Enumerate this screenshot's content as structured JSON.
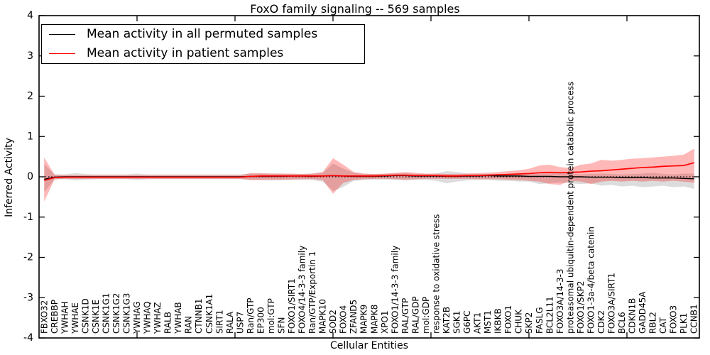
{
  "title": "FoxO family signaling -- 569 samples",
  "legend": {
    "items": [
      {
        "label": "Mean activity in all permuted samples",
        "color": "#000000"
      },
      {
        "label": "Mean activity in patient samples",
        "color": "#ff0000"
      }
    ]
  },
  "chart_data": {
    "type": "line",
    "title": "FoxO family signaling -- 569 samples",
    "xlabel": "Cellular Entities",
    "ylabel": "Inferred Activity",
    "ylim": [
      -4,
      4
    ],
    "yticks": [
      -4,
      -3,
      -2,
      -1,
      0,
      1,
      2,
      3,
      4
    ],
    "grid": false,
    "legend_position": "upper left",
    "reference_line": {
      "y": 0,
      "style": "dotted",
      "color": "#000000"
    },
    "categories": [
      "FBXO32",
      "CREBBP",
      "YWHAH",
      "YWHAE",
      "CSNK1D",
      "CSNK1E",
      "CSNK1G1",
      "CSNK1G2",
      "CSNK1G3",
      "YWHAG",
      "YWHAQ",
      "YWHAZ",
      "RALB",
      "YWHAB",
      "RAN",
      "CTNNB1",
      "CSNK1A1",
      "SIRT1",
      "RALA",
      "USP7",
      "Ran/GTP",
      "EP300",
      "mol:GTP",
      "SFN",
      "FOXO1/SIRT1",
      "FOXO4/14-3-3 family",
      "Ran/GTP/Exportin 1",
      "MAPK10",
      "SOD2",
      "FOXO4",
      "ZFAND5",
      "MAPK9",
      "MAPK8",
      "XPO1",
      "FOXO1/14-3-3 family",
      "RAL/GTP",
      "RAL/GDP",
      "mol:GDP",
      "response to oxidative stress",
      "KAT2B",
      "SGK1",
      "G6PC",
      "AKT1",
      "MST1",
      "IKBKB",
      "FOXO1",
      "CHUK",
      "SKP2",
      "FASLG",
      "BCL2L11",
      "FOXO3A/14-3-3",
      "proteasomal ubiquitin-dependent protein catabolic process",
      "FOXO1/SKP2",
      "FOXO1-3a-4/beta catenin",
      "CDK2",
      "FOXO3A/SIRT1",
      "BCL6",
      "CDKN1B",
      "GADD45A",
      "RBL2",
      "CAT",
      "FOXO3",
      "PLK1",
      "CCNB1"
    ],
    "series": [
      {
        "name": "Mean activity in all permuted samples",
        "color": "#000000",
        "values": [
          -0.06,
          -0.01,
          0,
          0,
          0,
          0,
          0,
          0,
          0,
          0,
          0,
          0,
          0,
          0,
          0,
          0,
          0,
          0,
          0,
          0,
          0.01,
          0.01,
          0.01,
          0.01,
          0.02,
          0.02,
          0.01,
          0.02,
          0.03,
          0.02,
          0.01,
          0.01,
          0.01,
          0.02,
          0.03,
          0.03,
          0.02,
          0.02,
          0.02,
          0.01,
          0.01,
          0.02,
          0.02,
          0.03,
          0.02,
          0.02,
          0.02,
          0.01,
          0.01,
          0.01,
          0,
          0,
          0,
          -0.01,
          -0.01,
          -0.01,
          -0.02,
          -0.02,
          -0.02,
          -0.03,
          -0.03,
          -0.03,
          -0.04,
          -0.05
        ]
      },
      {
        "name": "Mean activity in patient samples",
        "color": "#ff0000",
        "values": [
          -0.09,
          -0.02,
          -0.01,
          -0.01,
          -0.01,
          -0.01,
          -0.01,
          -0.01,
          -0.01,
          -0.01,
          -0.01,
          -0.01,
          -0.01,
          -0.01,
          -0.01,
          -0.01,
          -0.01,
          -0.01,
          -0.01,
          -0.01,
          0.01,
          0.02,
          0.02,
          0.02,
          0.02,
          0.02,
          0.02,
          0.02,
          0.03,
          0.02,
          0.02,
          0.02,
          0.02,
          0.03,
          0.04,
          0.04,
          0.03,
          0.03,
          0.03,
          0.02,
          0.02,
          0.03,
          0.03,
          0.04,
          0.05,
          0.06,
          0.07,
          0.08,
          0.1,
          0.11,
          0.1,
          0.11,
          0.12,
          0.14,
          0.15,
          0.17,
          0.19,
          0.21,
          0.23,
          0.24,
          0.26,
          0.27,
          0.28,
          0.35
        ]
      }
    ],
    "bands": [
      {
        "name": "permuted-samples-range",
        "color": "#808080",
        "opacity": 0.28,
        "upper": [
          0.32,
          0.06,
          0.06,
          0.09,
          0.07,
          0.06,
          0.06,
          0.06,
          0.06,
          0.08,
          0.06,
          0.06,
          0.06,
          0.06,
          0.06,
          0.06,
          0.06,
          0.06,
          0.06,
          0.06,
          0.08,
          0.08,
          0.08,
          0.08,
          0.07,
          0.07,
          0.08,
          0.1,
          0.33,
          0.2,
          0.1,
          0.07,
          0.07,
          0.07,
          0.08,
          0.09,
          0.07,
          0.07,
          0.08,
          0.14,
          0.12,
          0.08,
          0.07,
          0.07,
          0.07,
          0.07,
          0.07,
          0.07,
          0.08,
          0.08,
          0.1,
          0.07,
          0.06,
          0.07,
          0.08,
          0.07,
          0.06,
          0.07,
          0.08,
          0.1,
          0.07,
          0.06,
          0.08,
          0.08
        ],
        "lower": [
          -0.38,
          -0.07,
          -0.06,
          -0.09,
          -0.07,
          -0.06,
          -0.06,
          -0.06,
          -0.06,
          -0.08,
          -0.06,
          -0.06,
          -0.06,
          -0.06,
          -0.06,
          -0.06,
          -0.06,
          -0.06,
          -0.06,
          -0.06,
          -0.08,
          -0.08,
          -0.08,
          -0.08,
          -0.07,
          -0.07,
          -0.08,
          -0.12,
          -0.35,
          -0.25,
          -0.1,
          -0.08,
          -0.07,
          -0.07,
          -0.08,
          -0.09,
          -0.08,
          -0.08,
          -0.1,
          -0.16,
          -0.12,
          -0.09,
          -0.08,
          -0.08,
          -0.1,
          -0.1,
          -0.12,
          -0.12,
          -0.18,
          -0.16,
          -0.14,
          -0.16,
          -0.18,
          -0.16,
          -0.22,
          -0.2,
          -0.24,
          -0.22,
          -0.26,
          -0.24,
          -0.22,
          -0.26,
          -0.24,
          -0.3
        ]
      },
      {
        "name": "patient-samples-range",
        "color": "#ff0000",
        "opacity": 0.28,
        "upper": [
          0.48,
          0.05,
          0.04,
          0.04,
          0.04,
          0.04,
          0.04,
          0.04,
          0.04,
          0.04,
          0.04,
          0.04,
          0.04,
          0.04,
          0.04,
          0.04,
          0.04,
          0.04,
          0.04,
          0.04,
          0.09,
          0.09,
          0.08,
          0.08,
          0.08,
          0.07,
          0.08,
          0.12,
          0.46,
          0.3,
          0.12,
          0.08,
          0.07,
          0.08,
          0.1,
          0.12,
          0.1,
          0.08,
          0.08,
          0.07,
          0.07,
          0.08,
          0.09,
          0.1,
          0.12,
          0.14,
          0.16,
          0.2,
          0.28,
          0.3,
          0.24,
          0.22,
          0.3,
          0.33,
          0.42,
          0.4,
          0.42,
          0.45,
          0.46,
          0.48,
          0.5,
          0.52,
          0.55,
          0.7
        ],
        "lower": [
          -0.62,
          -0.06,
          -0.05,
          -0.05,
          -0.05,
          -0.05,
          -0.05,
          -0.05,
          -0.05,
          -0.05,
          -0.05,
          -0.05,
          -0.05,
          -0.05,
          -0.05,
          -0.05,
          -0.05,
          -0.05,
          -0.05,
          -0.05,
          -0.08,
          -0.08,
          -0.08,
          -0.08,
          -0.07,
          -0.06,
          -0.06,
          -0.08,
          -0.42,
          -0.15,
          -0.08,
          -0.06,
          -0.05,
          -0.05,
          -0.06,
          -0.07,
          -0.06,
          -0.05,
          -0.05,
          -0.05,
          -0.05,
          -0.05,
          -0.06,
          -0.06,
          -0.06,
          -0.07,
          -0.08,
          -0.1,
          -0.12,
          -0.18,
          -0.2,
          -0.1,
          -0.12,
          -0.18,
          -0.12,
          -0.1,
          -0.12,
          -0.1,
          -0.12,
          -0.1,
          -0.12,
          -0.1,
          -0.12,
          -0.15
        ]
      }
    ]
  }
}
